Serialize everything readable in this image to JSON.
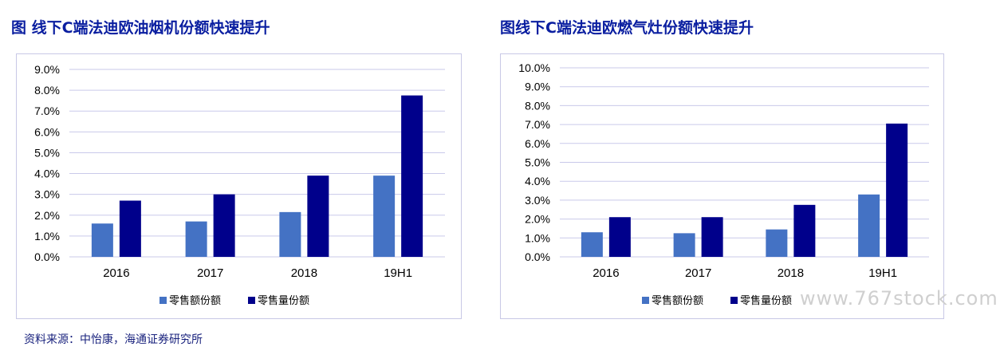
{
  "charts": [
    {
      "panel_title": "图 线下C端法迪欧油烟机份额快速提升",
      "chart_data": {
        "type": "bar",
        "categories": [
          "2016",
          "2017",
          "2018",
          "19H1"
        ],
        "series": [
          {
            "name": "零售额份额",
            "color": "#4472c4",
            "values": [
              1.6,
              1.7,
              2.15,
              3.9
            ]
          },
          {
            "name": "零售量份额",
            "color": "#00008b",
            "values": [
              2.7,
              3.0,
              3.9,
              7.75
            ]
          }
        ],
        "ylim": [
          0,
          9
        ],
        "yticks": [
          "0.0%",
          "1.0%",
          "2.0%",
          "3.0%",
          "4.0%",
          "5.0%",
          "6.0%",
          "7.0%",
          "8.0%",
          "9.0%"
        ],
        "grid": true,
        "legend": "bottom"
      }
    },
    {
      "panel_title": "图线下C端法迪欧燃气灶份额快速提升",
      "chart_data": {
        "type": "bar",
        "categories": [
          "2016",
          "2017",
          "2018",
          "19H1"
        ],
        "series": [
          {
            "name": "零售额份额",
            "color": "#4472c4",
            "values": [
              1.3,
              1.25,
              1.45,
              3.3
            ]
          },
          {
            "name": "零售量份额",
            "color": "#00008b",
            "values": [
              2.1,
              2.1,
              2.75,
              7.05
            ]
          }
        ],
        "ylim": [
          0,
          10
        ],
        "yticks": [
          "0.0%",
          "1.0%",
          "2.0%",
          "3.0%",
          "4.0%",
          "5.0%",
          "6.0%",
          "7.0%",
          "8.0%",
          "9.0%",
          "10.0%"
        ],
        "grid": true,
        "legend": "bottom"
      }
    }
  ],
  "watermark": "www.767stock.com",
  "source_text": "资料来源：中怡康，海通证券研究所"
}
